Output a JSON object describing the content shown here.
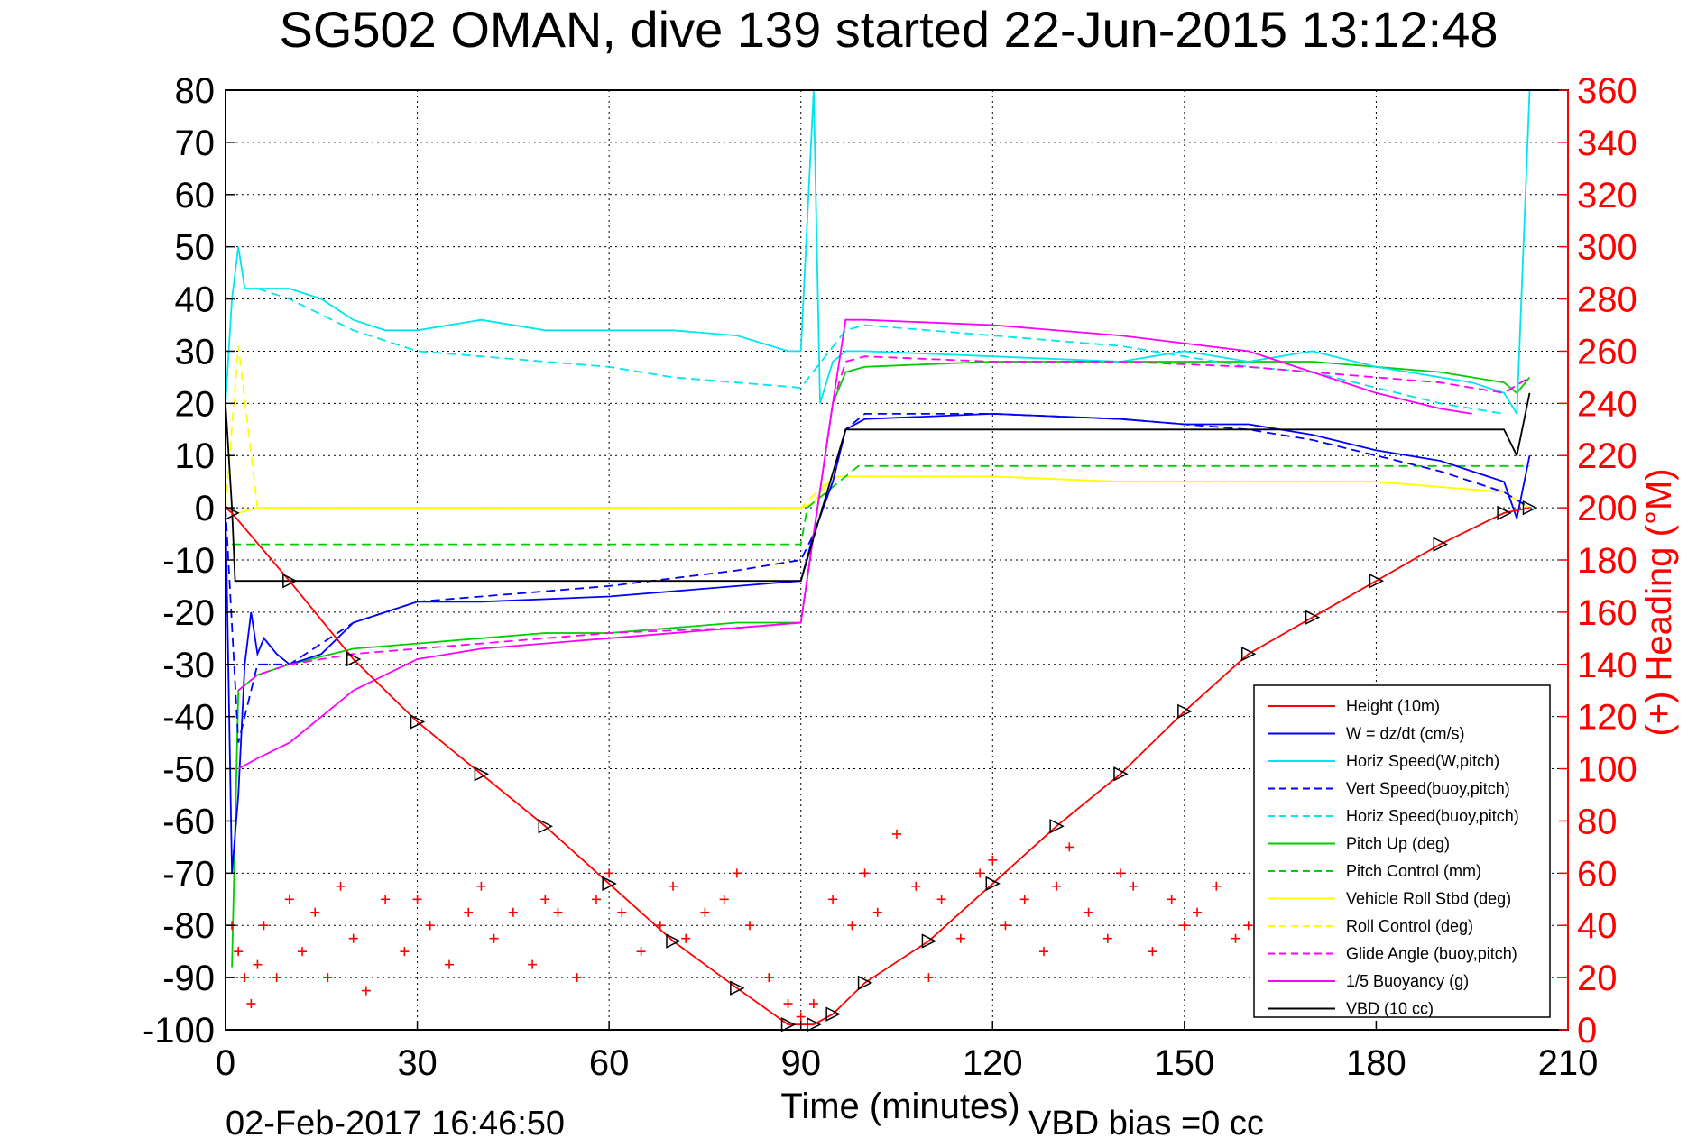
{
  "chart_data": {
    "type": "line",
    "title": "SG502 OMAN, dive 139 started 22-Jun-2015 13:12:48",
    "xlabel": "Time (minutes)",
    "ylabel": "",
    "y2label": "(+) Heading (°M)",
    "xlim": [
      0,
      210
    ],
    "ylim": [
      -100,
      80
    ],
    "y2lim": [
      0,
      360
    ],
    "xticks": [
      0,
      30,
      60,
      90,
      120,
      150,
      180,
      210
    ],
    "yticks": [
      80,
      70,
      60,
      50,
      40,
      30,
      20,
      10,
      0,
      -10,
      -20,
      -30,
      -40,
      -50,
      -60,
      -70,
      -80,
      -90,
      -100
    ],
    "y2ticks": [
      360,
      340,
      320,
      300,
      280,
      260,
      240,
      220,
      200,
      180,
      160,
      140,
      120,
      100,
      80,
      60,
      40,
      20,
      0
    ],
    "grid": true,
    "legend_position": "bottom-right",
    "footer_date": "02-Feb-2017 16:46:50",
    "footer_note": "VBD bias =0 cc",
    "series": [
      {
        "name": "Height (10m)",
        "color": "#ff0000",
        "style": "solid",
        "x": [
          0,
          1,
          10,
          20,
          30,
          40,
          50,
          60,
          70,
          80,
          88,
          92,
          95,
          100,
          110,
          120,
          130,
          140,
          150,
          160,
          170,
          180,
          190,
          200,
          204
        ],
        "y": [
          0,
          -1,
          -14,
          -29,
          -41,
          -51,
          -61,
          -72,
          -83,
          -92,
          -99,
          -99,
          -97,
          -91,
          -83,
          -72,
          -61,
          -51,
          -39,
          -28,
          -21,
          -14,
          -7,
          -1,
          0
        ]
      },
      {
        "name": "W = dz/dt (cm/s)",
        "color": "#0000ff",
        "style": "solid",
        "x": [
          0,
          1,
          2,
          3,
          4,
          5,
          6,
          8,
          10,
          15,
          20,
          30,
          40,
          60,
          80,
          90,
          92,
          95,
          97,
          100,
          120,
          140,
          150,
          160,
          170,
          180,
          190,
          195,
          200,
          202,
          204
        ],
        "y": [
          0,
          -70,
          -55,
          -30,
          -20,
          -28,
          -25,
          -28,
          -30,
          -28,
          -22,
          -18,
          -18,
          -17,
          -15,
          -14,
          -5,
          5,
          15,
          17,
          18,
          17,
          16,
          16,
          14,
          11,
          9,
          7,
          5,
          -2,
          10
        ]
      },
      {
        "name": "Horiz Speed(W,pitch)",
        "color": "#00e5ee",
        "style": "solid",
        "x": [
          0,
          1,
          2,
          3,
          5,
          10,
          15,
          20,
          25,
          30,
          40,
          50,
          60,
          70,
          80,
          88,
          90,
          92,
          93,
          95,
          97,
          100,
          120,
          140,
          150,
          160,
          170,
          180,
          190,
          195,
          200,
          202,
          204
        ],
        "y": [
          20,
          40,
          50,
          42,
          42,
          42,
          40,
          36,
          34,
          34,
          36,
          34,
          34,
          34,
          33,
          30,
          30,
          80,
          20,
          28,
          30,
          30,
          29,
          28,
          30,
          28,
          30,
          27,
          25,
          24,
          22,
          18,
          80
        ]
      },
      {
        "name": "Vert Speed(buoy,pitch)",
        "color": "#0000ff",
        "style": "dashed",
        "x": [
          0,
          2,
          5,
          10,
          20,
          30,
          40,
          60,
          80,
          90,
          92,
          95,
          97,
          100,
          120,
          140,
          150,
          160,
          170,
          180,
          190,
          200,
          204
        ],
        "y": [
          0,
          -45,
          -30,
          -30,
          -22,
          -18,
          -17,
          -15,
          -12,
          -10,
          -5,
          5,
          15,
          18,
          18,
          17,
          16,
          15,
          13,
          10,
          7,
          3,
          0
        ]
      },
      {
        "name": "Horiz Speed(buoy,pitch)",
        "color": "#00e5ee",
        "style": "dashed",
        "x": [
          5,
          10,
          20,
          30,
          40,
          50,
          60,
          70,
          80,
          90,
          97,
          100,
          120,
          140,
          150,
          160,
          170,
          180,
          190,
          200
        ],
        "y": [
          42,
          40,
          34,
          30,
          29,
          28,
          27,
          25,
          24,
          23,
          34,
          35,
          33,
          31,
          29,
          27,
          26,
          23,
          20,
          18
        ]
      },
      {
        "name": "Pitch Up (deg)",
        "color": "#00cc00",
        "style": "solid",
        "x": [
          1,
          2,
          5,
          10,
          20,
          30,
          40,
          50,
          60,
          70,
          80,
          90,
          92,
          95,
          97,
          100,
          120,
          140,
          150,
          160,
          170,
          180,
          190,
          195,
          200,
          202,
          204
        ],
        "y": [
          -88,
          -35,
          -32,
          -30,
          -27,
          -26,
          -25,
          -24,
          -24,
          -23,
          -22,
          -22,
          -5,
          20,
          26,
          27,
          28,
          28,
          28,
          28,
          28,
          27,
          26,
          25,
          24,
          22,
          25
        ]
      },
      {
        "name": "Pitch Control (mm)",
        "color": "#00cc00",
        "style": "dashed",
        "x": [
          1,
          90,
          91,
          99,
          204
        ],
        "y": [
          -7,
          -7,
          0,
          8,
          8
        ]
      },
      {
        "name": "Vehicle Roll Stbd (deg)",
        "color": "#ffff00",
        "style": "solid",
        "x": [
          0,
          2,
          5,
          10,
          20,
          40,
          60,
          80,
          90,
          92,
          95,
          100,
          120,
          140,
          160,
          180,
          200,
          204
        ],
        "y": [
          0,
          -1,
          0,
          0,
          0,
          0,
          0,
          0,
          0,
          1,
          6,
          6,
          6,
          5,
          5,
          5,
          3,
          0
        ]
      },
      {
        "name": "Roll Control (deg)",
        "color": "#ffff00",
        "style": "dashed",
        "x": [
          0,
          2,
          5,
          10,
          20,
          40,
          60,
          80,
          90,
          95,
          100,
          120,
          140,
          160,
          180,
          200,
          204
        ],
        "y": [
          0,
          31,
          0,
          0,
          0,
          0,
          0,
          0,
          0,
          6,
          6,
          6,
          5,
          5,
          5,
          3,
          0
        ]
      },
      {
        "name": "Glide Angle (buoy,pitch)",
        "color": "#ff00ff",
        "style": "dashed",
        "x": [
          2,
          5,
          10,
          20,
          30,
          40,
          60,
          80,
          90,
          92,
          95,
          97,
          100,
          120,
          140,
          160,
          180,
          190,
          200,
          204
        ],
        "y": [
          -35,
          -32,
          -30,
          -28,
          -27,
          -26,
          -24,
          -23,
          -22,
          -5,
          20,
          28,
          29,
          28,
          28,
          27,
          25,
          24,
          22,
          25
        ]
      },
      {
        "name": "1/5 Buoyancy (g)",
        "color": "#ff00ff",
        "style": "solid",
        "x": [
          2,
          5,
          10,
          15,
          20,
          30,
          40,
          60,
          80,
          90,
          92,
          95,
          97,
          100,
          120,
          140,
          160,
          170,
          180,
          190,
          195
        ],
        "y": [
          -50,
          -48,
          -45,
          -40,
          -35,
          -29,
          -27,
          -25,
          -23,
          -22,
          -5,
          20,
          36,
          36,
          35,
          33,
          30,
          26,
          22,
          19,
          18
        ]
      },
      {
        "name": "VBD (10 cc)",
        "color": "#000000",
        "style": "solid",
        "x": [
          0,
          1,
          1.5,
          90,
          97,
          100,
          200,
          202,
          204
        ],
        "y": [
          20,
          0,
          -14,
          -14,
          15,
          15,
          15,
          10,
          22
        ]
      }
    ],
    "heading": {
      "name": "(+) Heading",
      "color": "#ff0000",
      "axis": "right",
      "x": [
        1,
        2,
        3,
        4,
        5,
        6,
        8,
        10,
        12,
        14,
        16,
        18,
        20,
        22,
        25,
        28,
        30,
        32,
        35,
        38,
        40,
        42,
        45,
        48,
        50,
        52,
        55,
        58,
        60,
        62,
        65,
        68,
        70,
        72,
        75,
        78,
        80,
        82,
        85,
        88,
        90,
        92,
        95,
        98,
        100,
        102,
        105,
        108,
        110,
        112,
        115,
        118,
        120,
        122,
        125,
        128,
        130,
        132,
        135,
        138,
        140,
        142,
        145,
        148,
        150,
        152,
        155,
        158,
        160
      ],
      "y": [
        40,
        30,
        20,
        10,
        25,
        40,
        20,
        50,
        30,
        45,
        20,
        55,
        35,
        15,
        50,
        30,
        50,
        40,
        25,
        45,
        55,
        35,
        45,
        25,
        50,
        45,
        20,
        50,
        60,
        45,
        30,
        40,
        55,
        35,
        45,
        50,
        60,
        40,
        20,
        10,
        5,
        10,
        50,
        40,
        60,
        45,
        75,
        55,
        20,
        50,
        35,
        60,
        65,
        40,
        50,
        30,
        55,
        70,
        45,
        35,
        60,
        55,
        30,
        50,
        40,
        45,
        55,
        35,
        40
      ]
    }
  }
}
